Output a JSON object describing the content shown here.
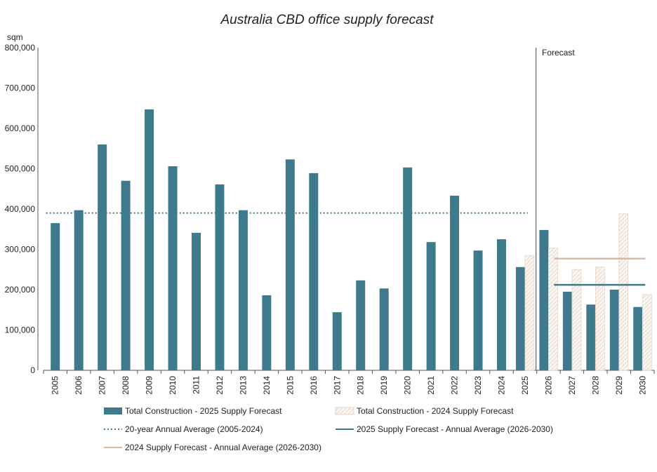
{
  "chart_data": {
    "type": "bar",
    "title": "Australia CBD office supply forecast",
    "ylabel": "sqm",
    "ylim": [
      0,
      800000
    ],
    "yticks": [
      "0",
      "100,000",
      "200,000",
      "300,000",
      "400,000",
      "500,000",
      "600,000",
      "700,000",
      "800,000"
    ],
    "grid": false,
    "legend_position": "bottom",
    "forecast_label": "Forecast",
    "forecast_starts": "2026",
    "categories": [
      "2005",
      "2006",
      "2007",
      "2008",
      "2009",
      "2010",
      "2011",
      "2012",
      "2013",
      "2014",
      "2015",
      "2016",
      "2017",
      "2018",
      "2019",
      "2020",
      "2021",
      "2022",
      "2023",
      "2024",
      "2025",
      "2026",
      "2027",
      "2028",
      "2029",
      "2030"
    ],
    "series": [
      {
        "name": "Total Construction - 2025 Supply Forecast",
        "style": "solid",
        "color": "#3f7a8c",
        "values": [
          365000,
          397000,
          560000,
          470000,
          647000,
          506000,
          341000,
          461000,
          397000,
          186000,
          523000,
          489000,
          144000,
          223000,
          203000,
          503000,
          318000,
          433000,
          297000,
          325000,
          256000,
          348000,
          195000,
          163000,
          200000,
          157000
        ]
      },
      {
        "name": "Total Construction - 2024 Supply Forecast",
        "style": "hatched",
        "color": "#e2cdbf",
        "values": [
          null,
          null,
          null,
          null,
          null,
          null,
          null,
          null,
          null,
          null,
          null,
          null,
          null,
          null,
          null,
          null,
          null,
          null,
          null,
          null,
          285000,
          303000,
          250000,
          256000,
          388000,
          188000
        ]
      }
    ],
    "reference_lines": [
      {
        "name": "20-year Annual Average (2005-2024)",
        "style": "dotted",
        "color": "#3f7a8c",
        "value": 390000,
        "from": "2005",
        "to": "2025"
      },
      {
        "name": "2025 Supply Forecast - Annual Average (2026-2030)",
        "style": "solid",
        "color": "#3f7a8c",
        "value": 212000,
        "from": "2026",
        "to": "2030"
      },
      {
        "name": "2024 Supply Forecast - Annual Average (2026-2030)",
        "style": "solid",
        "color": "#d9b9a6",
        "value": 277000,
        "from": "2026",
        "to": "2030"
      }
    ]
  }
}
